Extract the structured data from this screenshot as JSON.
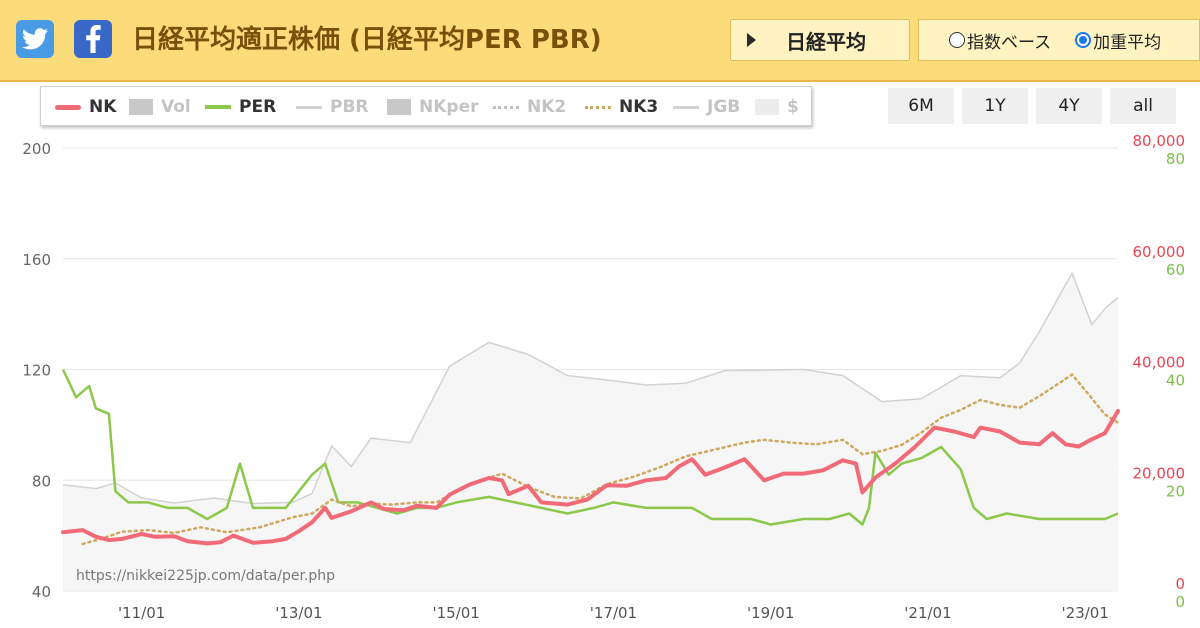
{
  "header": {
    "twitter_icon": "twitter-icon",
    "facebook_icon": "facebook-icon",
    "title": "日経平均適正株価 (日経平均PER PBR)",
    "index_button": "日経平均",
    "radio_index": "指数ベース",
    "radio_weighted": "加重平均",
    "selected_radio": "加重平均"
  },
  "range_buttons": [
    "6M",
    "1Y",
    "4Y",
    "all"
  ],
  "colors": {
    "nk": "#f06b77",
    "per": "#8cc84b",
    "nk3": "#cfa860",
    "gray": "#d2d2d2",
    "light": "#ececec",
    "vol": "#c8c8c8"
  },
  "chart_data": {
    "type": "line",
    "source_note": "https://nikkei225jp.com/data/per.php",
    "legend": [
      {
        "name": "NK",
        "active": true
      },
      {
        "name": "Vol",
        "active": false
      },
      {
        "name": "PER",
        "active": true
      },
      {
        "name": "PBR",
        "active": false
      },
      {
        "name": "NKper",
        "active": false
      },
      {
        "name": "NK2",
        "active": false
      },
      {
        "name": "NK3",
        "active": true
      },
      {
        "name": "JGB",
        "active": false
      },
      {
        "name": "$",
        "active": false
      }
    ],
    "x_ticks": [
      "'11/01",
      "'13/01",
      "'15/01",
      "'17/01",
      "'19/01",
      "'21/01",
      "'23/01"
    ],
    "x_range": [
      "2010-01",
      "2023-06"
    ],
    "left_axis": {
      "min": 40,
      "max": 200,
      "ticks": [
        40,
        80,
        120,
        160,
        200
      ]
    },
    "right_axis_nk": {
      "min": 0,
      "max": 80000,
      "ticks": [
        "0",
        "20,000",
        "40,000",
        "60,000",
        "80,000"
      ]
    },
    "right_axis_per": {
      "min": 0,
      "max": 80,
      "ticks": [
        "0",
        "20",
        "40",
        "60",
        "80"
      ]
    },
    "series": [
      {
        "name": "NK",
        "axis": "nk",
        "points": [
          [
            "2010-01",
            10600
          ],
          [
            "2010-04",
            11000
          ],
          [
            "2010-06",
            9800
          ],
          [
            "2010-08",
            9200
          ],
          [
            "2010-10",
            9400
          ],
          [
            "2011-01",
            10300
          ],
          [
            "2011-03",
            9800
          ],
          [
            "2011-06",
            9900
          ],
          [
            "2011-08",
            9000
          ],
          [
            "2011-11",
            8600
          ],
          [
            "2012-01",
            8800
          ],
          [
            "2012-03",
            10000
          ],
          [
            "2012-06",
            8700
          ],
          [
            "2012-09",
            9000
          ],
          [
            "2012-11",
            9400
          ],
          [
            "2013-01",
            10800
          ],
          [
            "2013-03",
            12400
          ],
          [
            "2013-05",
            15000
          ],
          [
            "2013-06",
            13200
          ],
          [
            "2013-09",
            14400
          ],
          [
            "2013-12",
            16000
          ],
          [
            "2014-02",
            14800
          ],
          [
            "2014-05",
            14600
          ],
          [
            "2014-07",
            15400
          ],
          [
            "2014-10",
            15000
          ],
          [
            "2014-12",
            17400
          ],
          [
            "2015-03",
            19200
          ],
          [
            "2015-06",
            20400
          ],
          [
            "2015-08",
            20000
          ],
          [
            "2015-09",
            17500
          ],
          [
            "2015-12",
            19000
          ],
          [
            "2016-02",
            16000
          ],
          [
            "2016-06",
            15600
          ],
          [
            "2016-09",
            16500
          ],
          [
            "2016-12",
            19100
          ],
          [
            "2017-03",
            19000
          ],
          [
            "2017-06",
            20000
          ],
          [
            "2017-09",
            20400
          ],
          [
            "2017-11",
            22500
          ],
          [
            "2018-01",
            23800
          ],
          [
            "2018-03",
            21000
          ],
          [
            "2018-06",
            22300
          ],
          [
            "2018-09",
            23800
          ],
          [
            "2018-12",
            20000
          ],
          [
            "2019-03",
            21200
          ],
          [
            "2019-06",
            21200
          ],
          [
            "2019-09",
            21800
          ],
          [
            "2019-12",
            23600
          ],
          [
            "2020-02",
            23000
          ],
          [
            "2020-03",
            17800
          ],
          [
            "2020-05",
            20500
          ],
          [
            "2020-08",
            23000
          ],
          [
            "2020-11",
            26000
          ],
          [
            "2021-02",
            29500
          ],
          [
            "2021-05",
            28800
          ],
          [
            "2021-08",
            27800
          ],
          [
            "2021-09",
            29500
          ],
          [
            "2021-12",
            28800
          ],
          [
            "2022-03",
            26800
          ],
          [
            "2022-06",
            26500
          ],
          [
            "2022-08",
            28500
          ],
          [
            "2022-10",
            26500
          ],
          [
            "2022-12",
            26100
          ],
          [
            "2023-02",
            27400
          ],
          [
            "2023-04",
            28500
          ],
          [
            "2023-06",
            32500
          ]
        ]
      },
      {
        "name": "PER",
        "axis": "per",
        "points": [
          [
            "2010-01",
            40
          ],
          [
            "2010-03",
            35
          ],
          [
            "2010-05",
            37
          ],
          [
            "2010-06",
            33
          ],
          [
            "2010-08",
            32
          ],
          [
            "2010-09",
            18
          ],
          [
            "2010-11",
            16
          ],
          [
            "2011-02",
            16
          ],
          [
            "2011-05",
            15
          ],
          [
            "2011-08",
            15
          ],
          [
            "2011-11",
            13
          ],
          [
            "2012-02",
            15
          ],
          [
            "2012-04",
            23
          ],
          [
            "2012-06",
            15
          ],
          [
            "2012-09",
            15
          ],
          [
            "2012-11",
            15
          ],
          [
            "2013-01",
            18
          ],
          [
            "2013-03",
            21
          ],
          [
            "2013-05",
            23
          ],
          [
            "2013-07",
            16
          ],
          [
            "2013-10",
            16
          ],
          [
            "2014-01",
            15
          ],
          [
            "2014-04",
            14
          ],
          [
            "2014-07",
            15
          ],
          [
            "2014-10",
            15
          ],
          [
            "2015-01",
            16
          ],
          [
            "2015-06",
            17
          ],
          [
            "2015-10",
            16
          ],
          [
            "2016-02",
            15
          ],
          [
            "2016-06",
            14
          ],
          [
            "2016-10",
            15
          ],
          [
            "2017-01",
            16
          ],
          [
            "2017-06",
            15
          ],
          [
            "2017-10",
            15
          ],
          [
            "2018-01",
            15
          ],
          [
            "2018-04",
            13
          ],
          [
            "2018-07",
            13
          ],
          [
            "2018-10",
            13
          ],
          [
            "2019-01",
            12
          ],
          [
            "2019-06",
            13
          ],
          [
            "2019-10",
            13
          ],
          [
            "2020-01",
            14
          ],
          [
            "2020-03",
            12
          ],
          [
            "2020-04",
            15
          ],
          [
            "2020-05",
            25
          ],
          [
            "2020-07",
            21
          ],
          [
            "2020-09",
            23
          ],
          [
            "2020-12",
            24
          ],
          [
            "2021-03",
            26
          ],
          [
            "2021-06",
            22
          ],
          [
            "2021-08",
            15
          ],
          [
            "2021-10",
            13
          ],
          [
            "2022-01",
            14
          ],
          [
            "2022-06",
            13
          ],
          [
            "2022-10",
            13
          ],
          [
            "2023-01",
            13
          ],
          [
            "2023-04",
            13
          ],
          [
            "2023-06",
            14
          ]
        ]
      },
      {
        "name": "NK3",
        "axis": "nk",
        "points": [
          [
            "2010-04",
            8500
          ],
          [
            "2010-07",
            9500
          ],
          [
            "2010-10",
            10700
          ],
          [
            "2011-02",
            11000
          ],
          [
            "2011-06",
            10500
          ],
          [
            "2011-10",
            11500
          ],
          [
            "2012-02",
            10600
          ],
          [
            "2012-07",
            11500
          ],
          [
            "2012-12",
            13300
          ],
          [
            "2013-03",
            14000
          ],
          [
            "2013-06",
            16500
          ],
          [
            "2013-09",
            15300
          ],
          [
            "2013-12",
            15800
          ],
          [
            "2014-03",
            15600
          ],
          [
            "2014-07",
            16000
          ],
          [
            "2014-10",
            16000
          ],
          [
            "2015-01",
            18000
          ],
          [
            "2015-04",
            19700
          ],
          [
            "2015-08",
            21200
          ],
          [
            "2015-12",
            18800
          ],
          [
            "2016-04",
            17000
          ],
          [
            "2016-08",
            16700
          ],
          [
            "2016-12",
            19300
          ],
          [
            "2017-04",
            20600
          ],
          [
            "2017-08",
            22300
          ],
          [
            "2017-12",
            24300
          ],
          [
            "2018-04",
            25400
          ],
          [
            "2018-09",
            26800
          ],
          [
            "2018-12",
            27300
          ],
          [
            "2019-04",
            26800
          ],
          [
            "2019-08",
            26500
          ],
          [
            "2019-12",
            27300
          ],
          [
            "2020-03",
            24700
          ],
          [
            "2020-06",
            25300
          ],
          [
            "2020-09",
            26400
          ],
          [
            "2020-12",
            28600
          ],
          [
            "2021-03",
            31300
          ],
          [
            "2021-06",
            32700
          ],
          [
            "2021-09",
            34500
          ],
          [
            "2021-12",
            33600
          ],
          [
            "2022-03",
            33100
          ],
          [
            "2022-06",
            35200
          ],
          [
            "2022-09",
            37500
          ],
          [
            "2022-11",
            39100
          ],
          [
            "2023-02",
            34800
          ],
          [
            "2023-04",
            31900
          ],
          [
            "2023-06",
            30400
          ]
        ]
      },
      {
        "name": "JGB",
        "axis": "nk",
        "points": [
          [
            "2010-01",
            19200
          ],
          [
            "2010-06",
            18500
          ],
          [
            "2010-09",
            19500
          ],
          [
            "2011-01",
            16800
          ],
          [
            "2011-06",
            15900
          ],
          [
            "2011-12",
            16800
          ],
          [
            "2012-06",
            15800
          ],
          [
            "2012-12",
            16000
          ],
          [
            "2013-03",
            17600
          ],
          [
            "2013-06",
            26200
          ],
          [
            "2013-09",
            22500
          ],
          [
            "2013-12",
            27600
          ],
          [
            "2014-06",
            26800
          ],
          [
            "2014-12",
            40600
          ],
          [
            "2015-06",
            44900
          ],
          [
            "2015-12",
            42700
          ],
          [
            "2016-06",
            38900
          ],
          [
            "2016-12",
            38100
          ],
          [
            "2017-06",
            37200
          ],
          [
            "2017-12",
            37500
          ],
          [
            "2018-06",
            39800
          ],
          [
            "2018-12",
            39900
          ],
          [
            "2019-06",
            40000
          ],
          [
            "2019-12",
            38900
          ],
          [
            "2020-06",
            34200
          ],
          [
            "2020-12",
            34700
          ],
          [
            "2021-06",
            38900
          ],
          [
            "2021-12",
            38500
          ],
          [
            "2022-03",
            41200
          ],
          [
            "2022-06",
            46800
          ],
          [
            "2022-09",
            53200
          ],
          [
            "2022-11",
            57400
          ],
          [
            "2023-02",
            48100
          ],
          [
            "2023-04",
            51000
          ],
          [
            "2023-06",
            53000
          ]
        ]
      }
    ]
  }
}
